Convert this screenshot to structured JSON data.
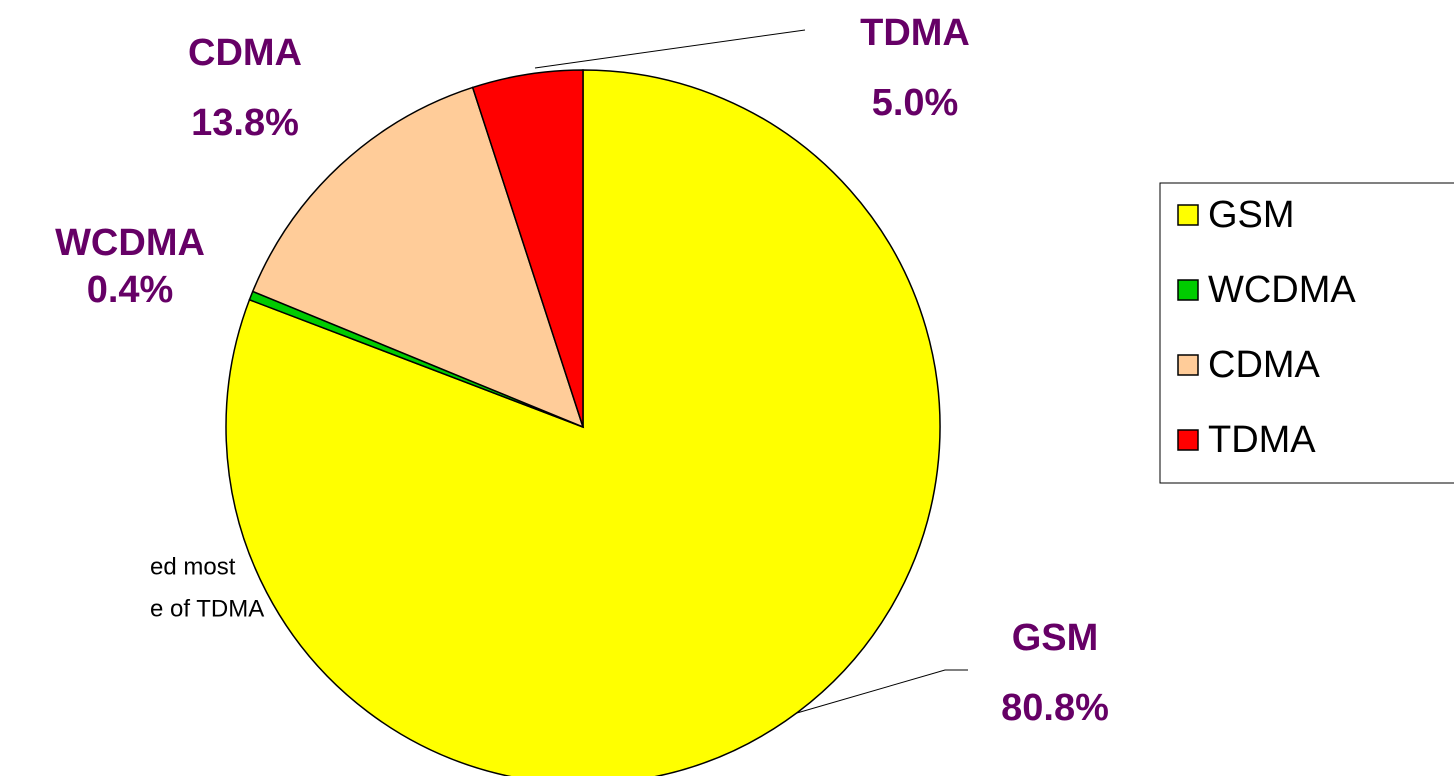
{
  "chart_data": {
    "type": "pie",
    "categories": [
      "GSM",
      "WCDMA",
      "CDMA",
      "TDMA"
    ],
    "values": [
      80.8,
      0.4,
      13.8,
      5.0
    ],
    "value_labels": [
      "80.8%",
      "0.4%",
      "13.8%",
      "5.0%"
    ],
    "colors": [
      "#ffff00",
      "#00cc00",
      "#ffcc99",
      "#ff0000"
    ],
    "annotation": [
      "ed most",
      "e of TDMA"
    ],
    "legend": "right"
  }
}
